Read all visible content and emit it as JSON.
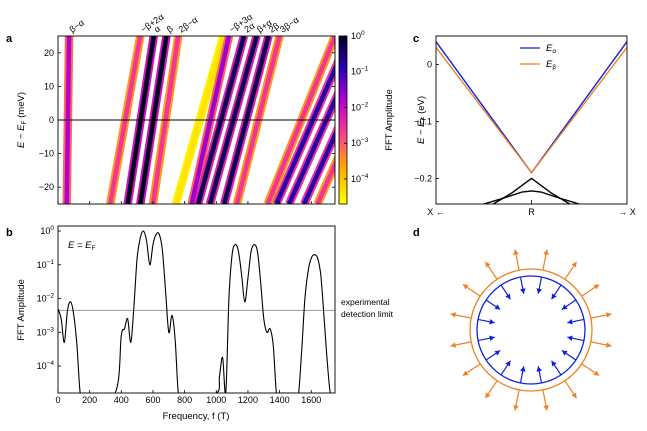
{
  "panels": {
    "a": "a",
    "b": "b",
    "c": "c",
    "d": "d"
  },
  "chart_data": [
    {
      "panel": "a",
      "type": "heatmap",
      "xlabel": "",
      "ylabel_main": "E − E",
      "ylabel_sub": "F",
      "ylabel_unit": " (meV)",
      "xlim": [
        0,
        1750
      ],
      "ylim": [
        -25,
        25
      ],
      "yticks": [
        -20,
        -10,
        0,
        10,
        20
      ],
      "ytick_labels": [
        "−20",
        "−10",
        "0",
        "10",
        "20"
      ],
      "xticks": [
        0,
        200,
        400,
        600,
        800,
        1000,
        1200,
        1400,
        1600
      ],
      "hline_y": 0,
      "colorbar": {
        "label": "FFT Amplitude",
        "ticks": [
          {
            "exp": 0,
            "base": "10",
            "sup": "0"
          },
          {
            "exp": -1,
            "base": "10",
            "sup": "−1"
          },
          {
            "exp": -2,
            "base": "10",
            "sup": "−2"
          },
          {
            "exp": -3,
            "base": "10",
            "sup": "−3"
          },
          {
            "exp": -4,
            "base": "10",
            "sup": "−4"
          }
        ],
        "range_log": [
          -4.7,
          0
        ],
        "colors": [
          "#ffff00",
          "#ffb000",
          "#ff4880",
          "#c000d0",
          "#3000c0",
          "#000020"
        ]
      },
      "bands": [
        {
          "label": "β−α",
          "f_bottom": 55,
          "f_top": 70,
          "amp_log": -1.8
        },
        {
          "label": "−β+2α",
          "f_bottom": 330,
          "f_top": 520,
          "amp_log": -2.6
        },
        {
          "label": "α",
          "f_bottom": 440,
          "f_top": 605,
          "amp_log": 0
        },
        {
          "label": "β",
          "f_bottom": 520,
          "f_top": 685,
          "amp_log": 0
        },
        {
          "label": "2β−α",
          "f_bottom": 600,
          "f_top": 760,
          "amp_log": -2.6
        },
        {
          "label": "",
          "f_bottom": 745,
          "f_top": 1045,
          "amp_log": -4.4
        },
        {
          "label": "−β+3α",
          "f_bottom": 845,
          "f_top": 1080,
          "amp_log": -1.7
        },
        {
          "label": "2α",
          "f_bottom": 885,
          "f_top": 1175,
          "amp_log": -0.3
        },
        {
          "label": "β+α",
          "f_bottom": 960,
          "f_top": 1255,
          "amp_log": -0.3
        },
        {
          "label": "2β",
          "f_bottom": 1050,
          "f_top": 1330,
          "amp_log": -0.3
        },
        {
          "label": "3β−α",
          "f_bottom": 1130,
          "f_top": 1400,
          "amp_log": -2.6
        },
        {
          "label": "",
          "f_bottom": 1325,
          "f_top": 1750,
          "amp_log": -2.6
        },
        {
          "label": "",
          "f_bottom": 1380,
          "f_top": 1840,
          "amp_log": -0.8
        },
        {
          "label": "",
          "f_bottom": 1460,
          "f_top": 1930,
          "amp_log": -0.8
        },
        {
          "label": "",
          "f_bottom": 1555,
          "f_top": 2030,
          "amp_log": -0.8
        },
        {
          "label": "",
          "f_bottom": 1640,
          "f_top": 2110,
          "amp_log": -2.6
        }
      ]
    },
    {
      "panel": "b",
      "type": "line",
      "annotation_main": "E = E",
      "annotation_sub": "F",
      "xlabel": "Frequency, f (T)",
      "ylabel": "FFT Amplitude",
      "xlim": [
        0,
        1750
      ],
      "ylim_log": [
        -4.8,
        0.15
      ],
      "xticks": [
        0,
        200,
        400,
        600,
        800,
        1000,
        1200,
        1400,
        1600
      ],
      "yticks": [
        {
          "exp": 0,
          "base": "10",
          "sup": "0"
        },
        {
          "exp": -1,
          "base": "10",
          "sup": "−1"
        },
        {
          "exp": -2,
          "base": "10",
          "sup": "−2"
        },
        {
          "exp": -3,
          "base": "10",
          "sup": "−3"
        },
        {
          "exp": -4,
          "base": "10",
          "sup": "−4"
        }
      ],
      "detection_limit_log": -2.35,
      "detection_label_1": "experimental",
      "detection_label_2": "detection limit",
      "x": [
        0,
        20,
        40,
        60,
        80,
        100,
        120,
        140,
        160,
        180,
        360,
        400,
        420,
        440,
        460,
        480,
        500,
        520,
        540,
        560,
        580,
        600,
        620,
        640,
        660,
        680,
        700,
        720,
        740,
        760,
        780,
        800,
        820,
        1000,
        1020,
        1040,
        1060,
        1080,
        1100,
        1120,
        1140,
        1160,
        1180,
        1200,
        1220,
        1240,
        1260,
        1280,
        1300,
        1320,
        1340,
        1360,
        1380,
        1400,
        1420,
        1440,
        1460,
        1480,
        1500,
        1520,
        1540,
        1560,
        1580,
        1600,
        1620,
        1640,
        1660,
        1680,
        1700,
        1720,
        1740,
        1750
      ],
      "y_log": [
        -2.3,
        -2.6,
        -3.3,
        -2.35,
        -2.1,
        -2.5,
        -3.4,
        -4.8,
        -4.8,
        -4.8,
        -4.8,
        -3.1,
        -2.9,
        -2.6,
        -3.3,
        -2.2,
        -0.8,
        -0.2,
        0,
        -0.3,
        -1.0,
        -0.4,
        -0.1,
        -0.1,
        -0.6,
        -1.8,
        -3.0,
        -2.5,
        -3.2,
        -4.8,
        -4.8,
        -4.8,
        -4.8,
        -4.8,
        -4.3,
        -3.75,
        -4.8,
        -2.0,
        -0.7,
        -0.4,
        -0.6,
        -1.3,
        -2.1,
        -1.4,
        -0.6,
        -0.4,
        -0.6,
        -1.5,
        -2.6,
        -3.0,
        -2.9,
        -3.4,
        -4.8,
        -4.8,
        -4.8,
        -4.8,
        -4.8,
        -4.8,
        -4.8,
        -4.8,
        -3.5,
        -2.0,
        -1.2,
        -0.8,
        -0.7,
        -0.8,
        -1.3,
        -2.5,
        -3.8,
        -4.8,
        -4.8,
        -4.8
      ]
    },
    {
      "panel": "c",
      "type": "line",
      "ylabel_main": "E − E",
      "ylabel_sub": "F",
      "ylabel_unit": " (eV)",
      "ylim": [
        -0.245,
        0.05
      ],
      "yticks": [
        0,
        -0.1,
        -0.2
      ],
      "ytick_labels": [
        "0",
        "−0.1",
        "−0.2"
      ],
      "xtick_labels": {
        "left": "X ←",
        "mid": "R",
        "right": "→ X"
      },
      "legend": [
        {
          "name": "E",
          "sub": "α",
          "color": "#1020e0"
        },
        {
          "name": "E",
          "sub": "β",
          "color": "#f08020"
        }
      ],
      "series": [
        {
          "name": "alpha",
          "color": "#1020e0",
          "x": [
            0,
            0.5,
            1
          ],
          "y": [
            0.04,
            -0.19,
            0.04
          ]
        },
        {
          "name": "beta",
          "color": "#f08020",
          "x": [
            0,
            0.5,
            1
          ],
          "y": [
            0.03,
            -0.19,
            0.03
          ]
        },
        {
          "name": "lower band 1",
          "color": "#000000",
          "x": [
            0.25,
            0.35,
            0.45,
            0.5,
            0.55,
            0.65,
            0.75
          ],
          "y": [
            -0.245,
            -0.235,
            -0.224,
            -0.222,
            -0.224,
            -0.235,
            -0.245
          ]
        },
        {
          "name": "lower band 2",
          "color": "#000000",
          "x": [
            0.3,
            0.4,
            0.48,
            0.5,
            0.52,
            0.6,
            0.7
          ],
          "y": [
            -0.245,
            -0.225,
            -0.205,
            -0.2,
            -0.205,
            -0.225,
            -0.245
          ]
        }
      ]
    },
    {
      "panel": "d",
      "type": "diagram",
      "description_colors": {
        "alpha": "#1020e0",
        "beta": "#f08020"
      },
      "inward_arrows": 16,
      "outward_arrows": 16
    }
  ]
}
